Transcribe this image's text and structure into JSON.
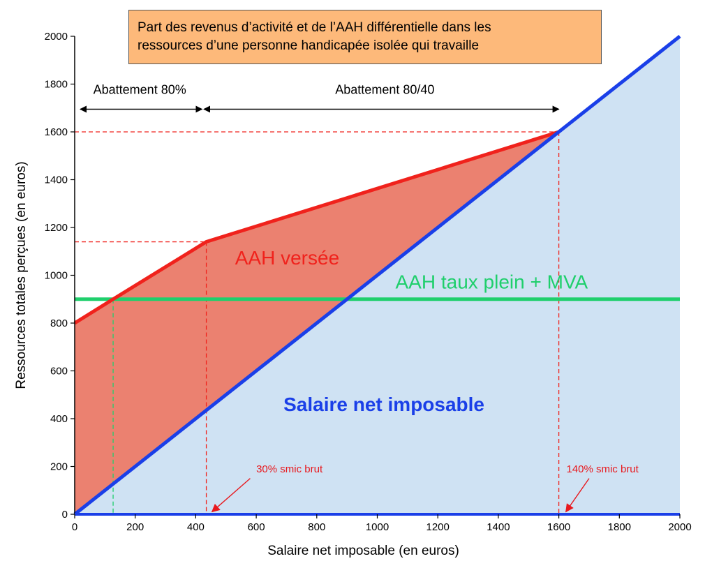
{
  "chart_data": {
    "type": "area",
    "title_lines": [
      "Part des revenus d’activité et de l’AAH différentielle dans les",
      "ressources d’une personne handicapée isolée qui travaille"
    ],
    "xlabel": "Salaire net imposable (en euros)",
    "ylabel": "Ressources totales perçues (en euros)",
    "xlim": [
      0,
      2000
    ],
    "ylim": [
      0,
      2000
    ],
    "xticks": [
      0,
      200,
      400,
      600,
      800,
      1000,
      1200,
      1400,
      1600,
      1800,
      2000
    ],
    "yticks": [
      0,
      200,
      400,
      600,
      800,
      1000,
      1200,
      1400,
      1600,
      1800,
      2000
    ],
    "series": [
      {
        "name": "Salaire net imposable",
        "color": "#1a3fe8",
        "fill": "#cfe2f3",
        "x": [
          0,
          2000
        ],
        "y": [
          0,
          2000
        ]
      },
      {
        "name": "AAH versée",
        "color": "#f0221c",
        "fill": "#eb8170",
        "x": [
          0,
          127,
          435,
          1600
        ],
        "y": [
          800,
          900,
          1140,
          1600
        ]
      },
      {
        "name": "AAH taux plein + MVA",
        "color": "#1fcf6c",
        "x": [
          0,
          2000
        ],
        "y": [
          900,
          900
        ]
      }
    ],
    "reference_lines": {
      "horizontal": [
        1600,
        1140
      ],
      "vertical_red": [
        435,
        1600
      ],
      "vertical_green": [
        127
      ]
    },
    "annotations": {
      "abattement_80": {
        "label": "Abattement 80%",
        "from": 0,
        "to": 430
      },
      "abattement_80_40": {
        "label": "Abattement 80/40",
        "from": 450,
        "to": 1600
      },
      "aah_versee": "AAH versée",
      "aah_plein": "AAH taux plein + MVA",
      "salaire": "Salaire net imposable",
      "smic30": {
        "label": "30% smic brut",
        "x": 435
      },
      "smic140": {
        "label": "140% smic brut",
        "x": 1600
      }
    }
  }
}
